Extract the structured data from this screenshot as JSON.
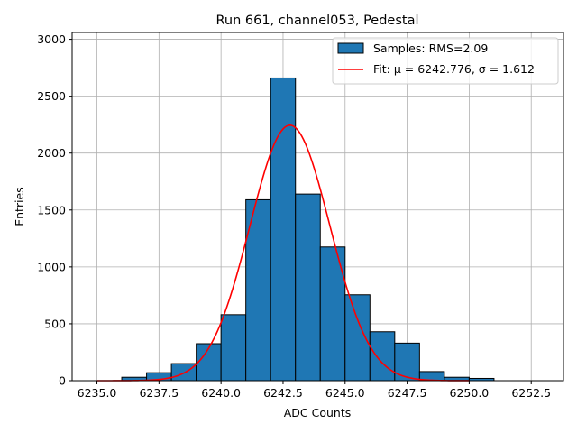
{
  "chart_data": {
    "type": "bar",
    "title": "Run 661, channel053, Pedestal",
    "xlabel": "ADC Counts",
    "ylabel": "Entries",
    "xlim": [
      6234.0,
      6253.8
    ],
    "ylim": [
      0,
      3060
    ],
    "xticks": [
      6235.0,
      6237.5,
      6240.0,
      6242.5,
      6245.0,
      6247.5,
      6250.0,
      6252.5
    ],
    "xtick_labels": [
      "6235.0",
      "6237.5",
      "6240.0",
      "6242.5",
      "6245.0",
      "6247.5",
      "6250.0",
      "6252.5"
    ],
    "yticks": [
      0,
      500,
      1000,
      1500,
      2000,
      2500,
      3000
    ],
    "ytick_labels": [
      "0",
      "500",
      "1000",
      "1500",
      "2000",
      "2500",
      "3000"
    ],
    "grid": true,
    "legend_position": "top-right",
    "bars": {
      "name": "Samples: RMS=2.09",
      "color": "#1f77b4",
      "edge_color": "#000000",
      "bin_edges": [
        6236,
        6237,
        6238,
        6239,
        6240,
        6241,
        6242,
        6243,
        6244,
        6245,
        6246,
        6247,
        6248,
        6249,
        6250,
        6251
      ],
      "counts": [
        30,
        70,
        150,
        325,
        580,
        1590,
        2660,
        1640,
        1175,
        755,
        430,
        330,
        80,
        30,
        20
      ]
    },
    "fit": {
      "name": "Fit: μ = 6242.776, σ = 1.612",
      "color": "#ff0000",
      "mu": 6242.776,
      "sigma": 1.612,
      "amplitude": 2245,
      "x_range": [
        6235.0,
        6250.0
      ]
    }
  }
}
